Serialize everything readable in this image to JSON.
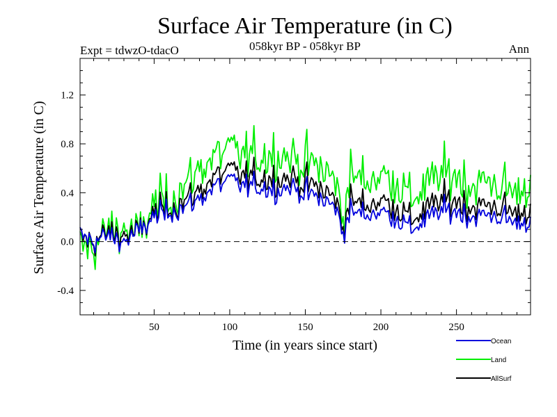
{
  "chart_data": {
    "type": "line",
    "title": "Surface Air Temperature (in C)",
    "subtitle": "058kyr BP - 058kyr BP",
    "experiment": "Expt = tdwzO-tdacO",
    "season": "Ann",
    "xlabel": "Time (in years since start)",
    "ylabel": "Surface Air Temperature (in C)",
    "xlim": [
      1,
      299
    ],
    "ylim": [
      -0.6,
      1.5
    ],
    "x_ticks": [
      50,
      100,
      150,
      200,
      250
    ],
    "x_tick_labels": [
      "50",
      "100",
      "150",
      "200",
      "250"
    ],
    "y_ticks": [
      -0.4,
      0.0,
      0.4,
      0.8,
      1.2
    ],
    "y_tick_labels": [
      "-0.4",
      "0.0",
      "0.4",
      "0.8",
      "1.2"
    ],
    "zero_line": true,
    "grid": false,
    "legend_position": "bottom-right",
    "x_anchor": [
      1,
      10,
      20,
      30,
      40,
      50,
      60,
      70,
      80,
      90,
      100,
      110,
      120,
      130,
      140,
      150,
      160,
      170,
      175,
      180,
      190,
      200,
      210,
      220,
      230,
      240,
      250,
      260,
      270,
      280,
      290,
      299
    ],
    "series": [
      {
        "name": "Ocean",
        "color": "#0000dd",
        "values": [
          0.05,
          0.0,
          0.05,
          0.0,
          0.08,
          0.2,
          0.25,
          0.28,
          0.35,
          0.45,
          0.5,
          0.45,
          0.45,
          0.42,
          0.45,
          0.4,
          0.35,
          0.28,
          0.08,
          0.25,
          0.22,
          0.25,
          0.2,
          0.1,
          0.18,
          0.25,
          0.25,
          0.2,
          0.22,
          0.2,
          0.15,
          0.18
        ]
      },
      {
        "name": "Land",
        "color": "#00ee00",
        "values": [
          -0.05,
          -0.05,
          0.1,
          0.1,
          0.05,
          0.3,
          0.35,
          0.45,
          0.6,
          0.7,
          0.75,
          0.7,
          0.7,
          0.72,
          0.7,
          0.65,
          0.6,
          0.5,
          0.2,
          0.55,
          0.5,
          0.55,
          0.5,
          0.35,
          0.45,
          0.55,
          0.55,
          0.45,
          0.5,
          0.45,
          0.4,
          0.5
        ]
      },
      {
        "name": "AllSurf",
        "color": "#000000",
        "values": [
          0.03,
          0.0,
          0.07,
          0.05,
          0.07,
          0.23,
          0.28,
          0.33,
          0.42,
          0.53,
          0.58,
          0.53,
          0.53,
          0.51,
          0.53,
          0.48,
          0.43,
          0.35,
          0.12,
          0.34,
          0.3,
          0.34,
          0.29,
          0.18,
          0.26,
          0.34,
          0.34,
          0.28,
          0.3,
          0.28,
          0.23,
          0.28
        ]
      }
    ]
  }
}
